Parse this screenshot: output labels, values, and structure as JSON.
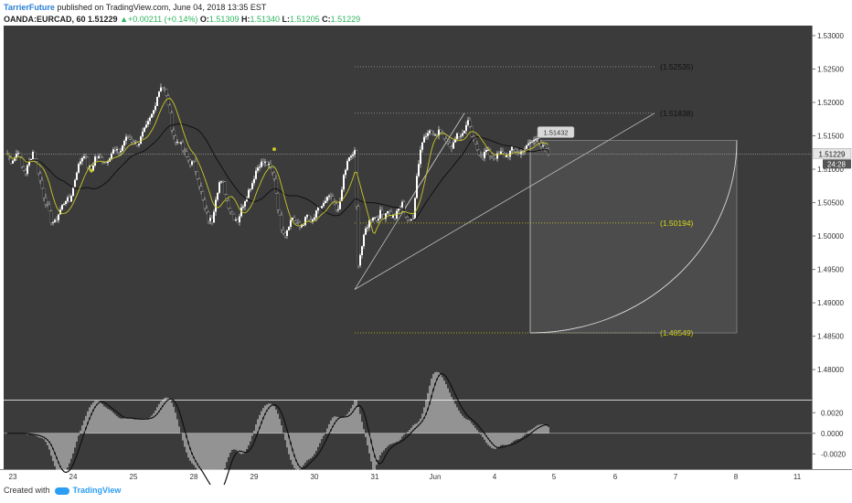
{
  "header": {
    "author": "TarrierFuture",
    "published": "published on TradingView.com, June 04, 2018 13:35 EST",
    "symbol": "OANDA:EURCAD, 60",
    "last": "1.51229",
    "change": "+0.00211 (+0.14%)",
    "o_label": "O:",
    "o_value": "1.51309",
    "h_label": "H:",
    "h_value": "1.51340",
    "l_label": "L:",
    "l_value": "1.51205",
    "c_label": "C:",
    "c_value": "1.51229"
  },
  "footer": {
    "created_with": "Created with",
    "brand": "TradingView"
  },
  "colors": {
    "background": "#3b3b3b",
    "candle_up": "#ffffff",
    "candle_down": "#1a1a1a",
    "ma_fast": "#c9c928",
    "ma_slow": "#111111",
    "fib_level": "#d4d400",
    "macd_hist": "#ffffff",
    "macd_signal": "#111111"
  },
  "chart_data": {
    "type": "candlestick",
    "y_axis": {
      "range": [
        1.4755,
        1.5315
      ],
      "ticks": [
        "1.53000",
        "1.52500",
        "1.52000",
        "1.51500",
        "1.51000",
        "1.50500",
        "1.50000",
        "1.49500",
        "1.49000",
        "1.48500",
        "1.48000"
      ],
      "price_tag": "1.51229",
      "countdown": "24:28"
    },
    "x_axis": {
      "labels": [
        "23",
        "24",
        "25",
        "28",
        "29",
        "30",
        "31",
        "Jun",
        "4",
        "5",
        "6",
        "7",
        "8",
        "11"
      ]
    },
    "levels": [
      {
        "label": "(1.52535)",
        "value": 1.52535
      },
      {
        "label": "(1.51838)",
        "value": 1.51838
      },
      {
        "label": "(1.50194)",
        "value": 1.50194
      },
      {
        "label": "(1.48549)",
        "value": 1.48549
      }
    ],
    "annotation": "1.51432",
    "series_anchor": [
      [
        0,
        1.5124
      ],
      [
        4,
        1.5112
      ],
      [
        8,
        1.5118
      ],
      [
        12,
        1.5128
      ],
      [
        16,
        1.5103
      ],
      [
        20,
        1.5095
      ],
      [
        24,
        1.5112
      ],
      [
        28,
        1.5126
      ],
      [
        32,
        1.511
      ],
      [
        36,
        1.5083
      ],
      [
        40,
        1.506
      ],
      [
        44,
        1.5043
      ],
      [
        48,
        1.5023
      ],
      [
        52,
        1.502
      ],
      [
        56,
        1.5033
      ],
      [
        60,
        1.5045
      ],
      [
        64,
        1.5055
      ],
      [
        68,
        1.5052
      ],
      [
        72,
        1.5073
      ],
      [
        76,
        1.5098
      ],
      [
        80,
        1.5113
      ],
      [
        84,
        1.5123
      ],
      [
        88,
        1.5105
      ],
      [
        92,
        1.5098
      ],
      [
        96,
        1.5118
      ],
      [
        100,
        1.5117
      ],
      [
        104,
        1.5115
      ],
      [
        108,
        1.511
      ],
      [
        112,
        1.512
      ],
      [
        116,
        1.5128
      ],
      [
        120,
        1.5126
      ],
      [
        124,
        1.5128
      ],
      [
        128,
        1.5143
      ],
      [
        132,
        1.5148
      ],
      [
        136,
        1.5143
      ],
      [
        140,
        1.5138
      ],
      [
        144,
        1.514
      ],
      [
        148,
        1.5153
      ],
      [
        152,
        1.5163
      ],
      [
        156,
        1.5175
      ],
      [
        160,
        1.5188
      ],
      [
        164,
        1.521
      ],
      [
        168,
        1.5225
      ],
      [
        172,
        1.5218
      ],
      [
        176,
        1.5198
      ],
      [
        180,
        1.5163
      ],
      [
        184,
        1.514
      ],
      [
        188,
        1.5143
      ],
      [
        192,
        1.5128
      ],
      [
        196,
        1.5118
      ],
      [
        200,
        1.511
      ],
      [
        204,
        1.5108
      ],
      [
        208,
        1.509
      ],
      [
        212,
        1.5065
      ],
      [
        216,
        1.504
      ],
      [
        220,
        1.5025
      ],
      [
        224,
        1.5023
      ],
      [
        228,
        1.5058
      ],
      [
        232,
        1.508
      ],
      [
        236,
        1.5078
      ],
      [
        240,
        1.5053
      ],
      [
        244,
        1.5038
      ],
      [
        248,
        1.5028
      ],
      [
        252,
        1.5023
      ],
      [
        256,
        1.504
      ],
      [
        260,
        1.5055
      ],
      [
        264,
        1.5068
      ],
      [
        268,
        1.508
      ],
      [
        272,
        1.5098
      ],
      [
        276,
        1.5108
      ],
      [
        280,
        1.511
      ],
      [
        284,
        1.5108
      ],
      [
        288,
        1.51
      ],
      [
        292,
        1.5088
      ],
      [
        296,
        1.5043
      ],
      [
        300,
        1.5013
      ],
      [
        304,
        1.5003
      ],
      [
        308,
        1.5018
      ],
      [
        312,
        1.5028
      ],
      [
        316,
        1.502
      ],
      [
        320,
        1.5013
      ],
      [
        324,
        1.502
      ],
      [
        328,
        1.503
      ],
      [
        332,
        1.5018
      ],
      [
        336,
        1.5028
      ],
      [
        340,
        1.504
      ],
      [
        344,
        1.5045
      ],
      [
        348,
        1.505
      ],
      [
        352,
        1.506
      ],
      [
        356,
        1.505
      ],
      [
        360,
        1.504
      ],
      [
        364,
        1.5048
      ],
      [
        368,
        1.509
      ],
      [
        372,
        1.511
      ],
      [
        376,
        1.512
      ],
      [
        380,
        1.5125
      ],
      [
        384,
        1.496
      ],
      [
        388,
        1.4985
      ],
      [
        392,
        1.501
      ],
      [
        396,
        1.5022
      ],
      [
        400,
        1.503
      ],
      [
        404,
        1.5025
      ],
      [
        408,
        1.5035
      ],
      [
        412,
        1.503
      ],
      [
        416,
        1.504
      ],
      [
        420,
        1.503
      ],
      [
        424,
        1.5028
      ],
      [
        428,
        1.504
      ],
      [
        432,
        1.5048
      ],
      [
        436,
        1.503
      ],
      [
        440,
        1.502
      ],
      [
        444,
        1.503
      ],
      [
        448,
        1.509
      ],
      [
        452,
        1.513
      ],
      [
        456,
        1.515
      ],
      [
        460,
        1.5158
      ],
      [
        464,
        1.5153
      ],
      [
        468,
        1.5148
      ],
      [
        472,
        1.516
      ],
      [
        476,
        1.5155
      ],
      [
        480,
        1.5145
      ],
      [
        484,
        1.513
      ],
      [
        488,
        1.514
      ],
      [
        492,
        1.5155
      ],
      [
        496,
        1.5148
      ],
      [
        500,
        1.516
      ],
      [
        504,
        1.517
      ],
      [
        508,
        1.515
      ],
      [
        512,
        1.5135
      ],
      [
        516,
        1.5125
      ],
      [
        520,
        1.512
      ],
      [
        524,
        1.5128
      ],
      [
        528,
        1.5122
      ],
      [
        532,
        1.5118
      ],
      [
        536,
        1.512
      ],
      [
        540,
        1.5124
      ],
      [
        544,
        1.512
      ],
      [
        548,
        1.5122
      ],
      [
        552,
        1.513
      ],
      [
        556,
        1.5128
      ],
      [
        560,
        1.5122
      ],
      [
        564,
        1.513
      ],
      [
        568,
        1.5133
      ],
      [
        572,
        1.514
      ],
      [
        576,
        1.5143
      ],
      [
        580,
        1.515
      ],
      [
        584,
        1.5135
      ],
      [
        588,
        1.5128
      ],
      [
        592,
        1.5123
      ]
    ],
    "macd": {
      "ticks": [
        "0.0020",
        "0.0000",
        "-0.0020"
      ],
      "range": [
        -0.0033,
        0.003
      ]
    }
  }
}
